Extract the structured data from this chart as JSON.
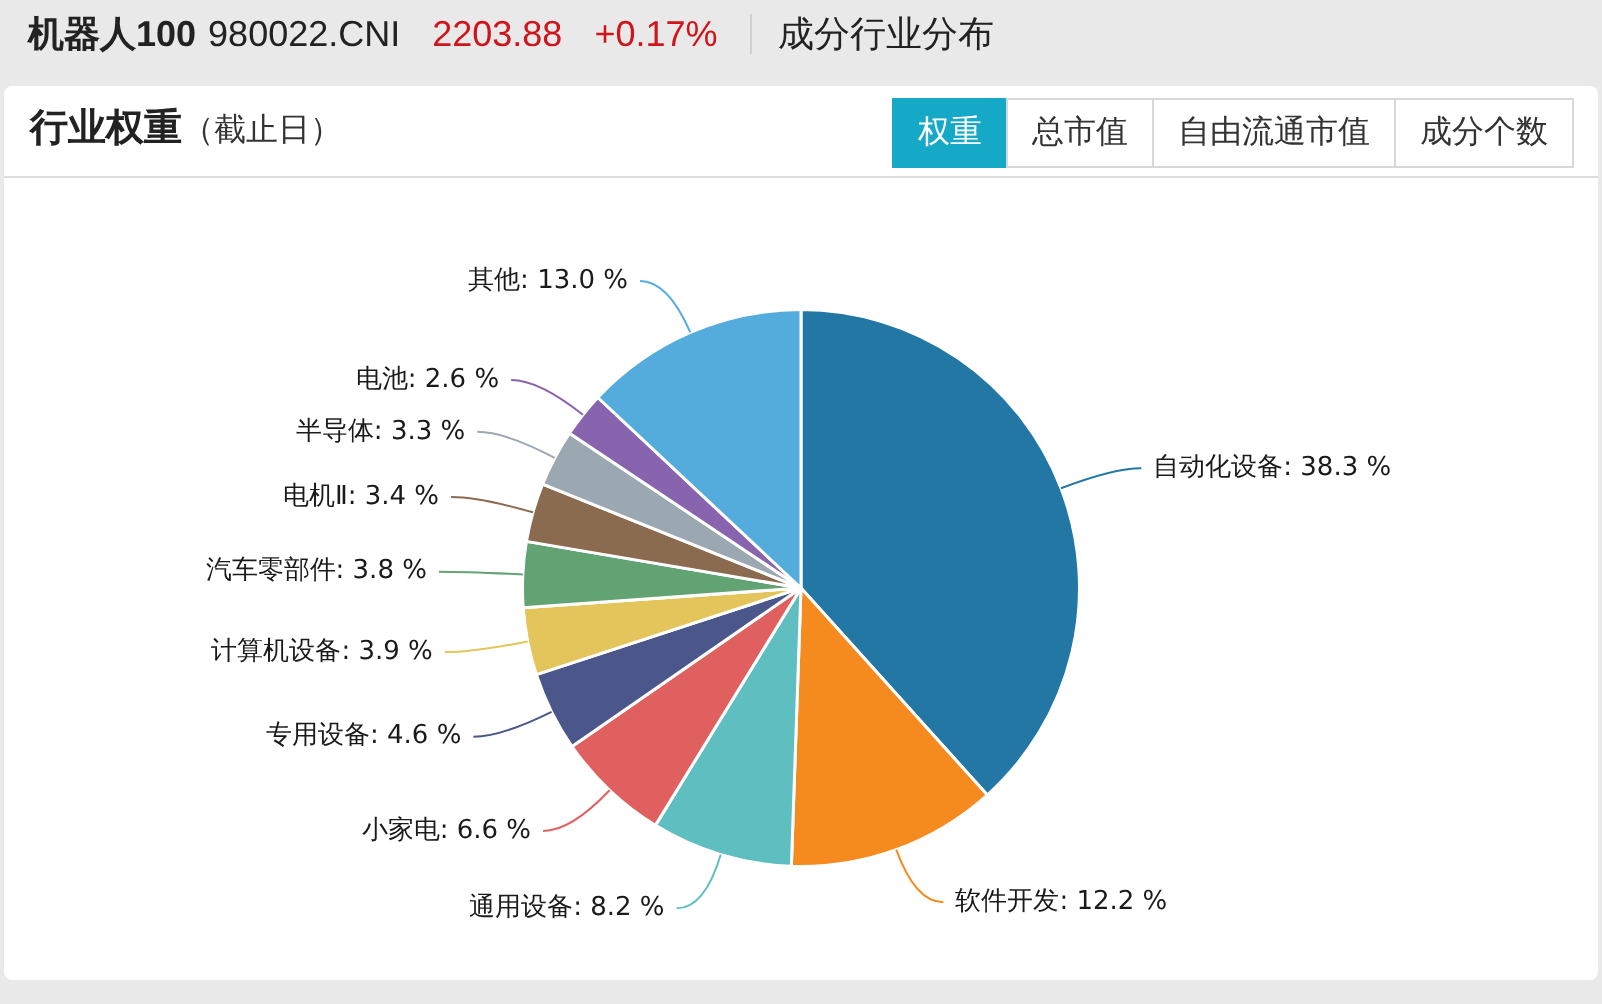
{
  "chart_data": {
    "type": "pie",
    "title": "行业权重",
    "subtitle": "（截止日）",
    "annotations": [
      "机器人100",
      "980022.CNI",
      "2203.88",
      "+0.17%",
      "成分行业分布",
      "权重",
      "总市值",
      "自由流通市值",
      "成分个数"
    ],
    "categories": [
      "自动化设备",
      "软件开发",
      "通用设备",
      "小家电",
      "专用设备",
      "计算机设备",
      "汽车零部件",
      "电机Ⅱ",
      "半导体",
      "电池",
      "其他"
    ],
    "values": [
      38.3,
      12.2,
      8.2,
      6.6,
      4.6,
      3.9,
      3.8,
      3.4,
      3.3,
      2.6,
      13.0
    ],
    "value_labels": [
      "38.3 %",
      "12.2 %",
      "8.2 %",
      "6.6 %",
      "4.6 %",
      "3.9 %",
      "3.8 %",
      "3.4 %",
      "3.3 %",
      "2.6 %",
      "13.0 %"
    ],
    "colors": [
      "#2377a4",
      "#f58a1e",
      "#5fbec0",
      "#e0605f",
      "#4b578b",
      "#e3c55b",
      "#62a373",
      "#8b6b50",
      "#9ca8b1",
      "#8964ae",
      "#53acdc"
    ],
    "legend": false
  }
}
